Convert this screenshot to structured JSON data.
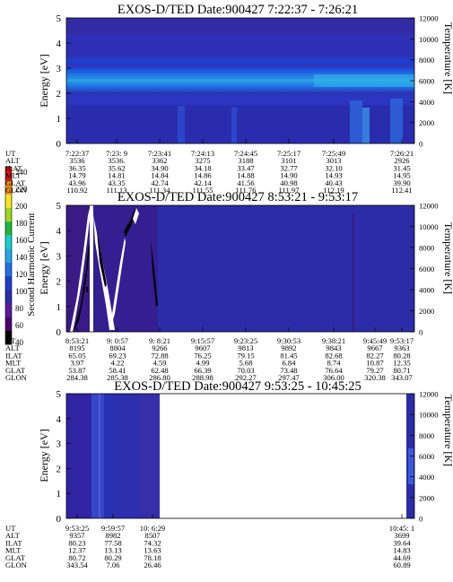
{
  "chart_data": {
    "type": "heatmap",
    "colorbar": {
      "label": "Second Harmonic Current",
      "ticks": [
        "40",
        "60",
        "80",
        "100",
        "120",
        "140",
        "160",
        "180",
        "200",
        "220",
        "240"
      ],
      "colors": [
        "#000000",
        "#4a0070",
        "#5a1a9a",
        "#2c2ca8",
        "#1a3ed0",
        "#1f6fe8",
        "#22a6e8",
        "#12d0d0",
        "#19b83c",
        "#9ad81e",
        "#f5e61a",
        "#f08c14",
        "#d81414"
      ]
    },
    "panels": [
      {
        "title": "EXOS-D/TED   Date:900427  7:22:37 - 7:26:21",
        "ylabel": "Energy [eV]",
        "ylabel_right": "Temperature [K]",
        "ylim": [
          0,
          5
        ],
        "yticks": [
          "0",
          "1",
          "2",
          "3",
          "4",
          "5"
        ],
        "y2lim": [
          0,
          12000
        ],
        "y2ticks": [
          "0",
          "2000",
          "4000",
          "6000",
          "8000",
          "10000",
          "12000"
        ],
        "table_labels": [
          "UT",
          "ALT",
          "ILAT",
          "MLT",
          "GLAT",
          "GLON"
        ],
        "columns": [
          [
            "7:22:37",
            "3536",
            "36.35",
            "14.79",
            "43.96",
            "110.92"
          ],
          [
            "7:23: 9",
            "3536.",
            "35.62",
            "14.81",
            "43.35",
            "111.13"
          ],
          [
            "7:23:41",
            "3362",
            "34.90",
            "14.84",
            "42.74",
            "111.34"
          ],
          [
            "7:24:13",
            "3275",
            "34.18",
            "14.86",
            "42.14",
            "111.55"
          ],
          [
            "7:24:45",
            "3188",
            "33.47",
            "14.88",
            "41.56",
            "111.76"
          ],
          [
            "7:25:17",
            "3101",
            "32.77",
            "14.90",
            "40.98",
            "111.97"
          ],
          [
            "7:25:49",
            "3013",
            "32.10",
            "14.93",
            "40.43",
            "112.19"
          ],
          [
            "7:26:21",
            "2926",
            "31.45",
            "14.95",
            "39.90",
            "112.41"
          ]
        ]
      },
      {
        "title": "EXOS-D/TED   Date:900427  8:53:21 - 9:53:17",
        "ylabel": "Energy [eV]",
        "ylabel_right": "Temperature [K]",
        "ylim": [
          0,
          5
        ],
        "yticks": [
          "0",
          "1",
          "2",
          "3",
          "4",
          "5"
        ],
        "y2lim": [
          0,
          12000
        ],
        "y2ticks": [
          "0",
          "2000",
          "4000",
          "6000",
          "8000",
          "10000",
          "12000"
        ],
        "table_labels": [
          "UT",
          "ALT",
          "ILAT",
          "MLT",
          "GLAT",
          "GLON"
        ],
        "columns": [
          [
            "8:53:21",
            "8195",
            "65.05",
            "3.97",
            "53.87",
            "284.38"
          ],
          [
            "9: 0:57",
            "8804",
            "69.23",
            "4.22",
            "58.41",
            "285.38"
          ],
          [
            "9: 8:21",
            "9266",
            "72.88",
            "4.59",
            "62.48",
            "286.80"
          ],
          [
            "9:15:57",
            "9607",
            "76.25",
            "4.99",
            "66.39",
            "288.98"
          ],
          [
            "9:23:25",
            "9813",
            "79.15",
            "5.68",
            "70.03",
            "292.27"
          ],
          [
            "9:30:53",
            "9892",
            "81.45",
            "6.84",
            "73.48",
            "297.47"
          ],
          [
            "9:38:21",
            "9843",
            "82.68",
            "8.74",
            "76.64",
            "306.00"
          ],
          [
            "9:45:49",
            "9667",
            "82.27",
            "10.87",
            "79.27",
            "320.38"
          ],
          [
            "9:53:17",
            "9363",
            "80.28",
            "12.35",
            "80.71",
            "343.07"
          ]
        ]
      },
      {
        "title": "EXOS-D/TED   Date:900427  9:53:25 - 10:45:25",
        "ylabel": "Energy [eV]",
        "ylabel_right": "Temperature [K]",
        "ylim": [
          0,
          5
        ],
        "yticks": [
          "0",
          "1",
          "2",
          "3",
          "4",
          "5"
        ],
        "y2lim": [
          0,
          12000
        ],
        "y2ticks": [
          "0",
          "2000",
          "4000",
          "6000",
          "8000",
          "10000",
          "12000"
        ],
        "table_labels": [
          "UT",
          "ALT",
          "ILAT",
          "MLT",
          "GLAT",
          "GLON"
        ],
        "columns": [
          [
            "9:53:25",
            "9357",
            "80.23",
            "12.37",
            "80.72",
            "343.54"
          ],
          [
            "9:59:57",
            "8982",
            "77.58",
            "13.13",
            "80.29",
            "7.06"
          ],
          [
            "10: 6:29",
            "8507",
            "74.32",
            "13.63",
            "78.18",
            "26.46"
          ],
          [
            "10:45: 1",
            "3699",
            "39.64",
            "14.83",
            "44.69",
            "60.89"
          ]
        ]
      }
    ]
  }
}
